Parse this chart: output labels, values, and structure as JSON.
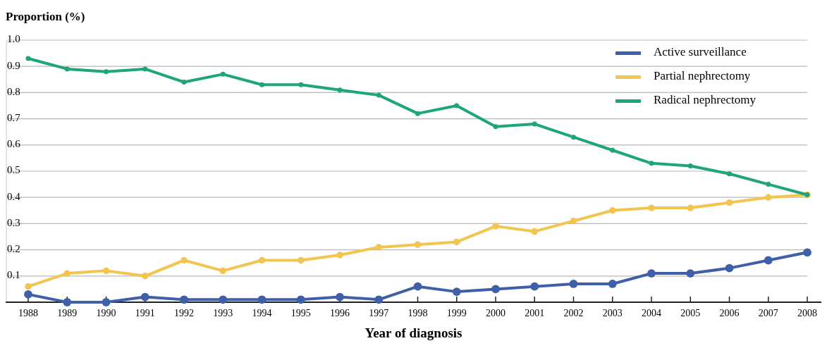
{
  "chart_data": {
    "type": "line",
    "ylabel": "Proportion (%)",
    "xlabel": "Year of diagnosis",
    "categories": [
      "1988",
      "1989",
      "1990",
      "1991",
      "1992",
      "1993",
      "1994",
      "1995",
      "1996",
      "1997",
      "1998",
      "1999",
      "2000",
      "2001",
      "2002",
      "2003",
      "2004",
      "2005",
      "2006",
      "2007",
      "2008"
    ],
    "series": [
      {
        "name": "Active surveillance",
        "color": "#3f5fa8",
        "values": [
          0.03,
          0.0,
          0.0,
          0.02,
          0.01,
          0.01,
          0.01,
          0.01,
          0.02,
          0.01,
          0.06,
          0.04,
          0.05,
          0.06,
          0.07,
          0.07,
          0.11,
          0.11,
          0.13,
          0.16,
          0.19
        ]
      },
      {
        "name": "Partial nephrectomy",
        "color": "#f2c450",
        "values": [
          0.06,
          0.11,
          0.12,
          0.1,
          0.16,
          0.12,
          0.16,
          0.16,
          0.18,
          0.21,
          0.22,
          0.23,
          0.29,
          0.27,
          0.31,
          0.35,
          0.36,
          0.36,
          0.38,
          0.4,
          0.41
        ]
      },
      {
        "name": "Radical nephrectomy",
        "color": "#1fa57a",
        "values": [
          0.93,
          0.89,
          0.88,
          0.89,
          0.84,
          0.87,
          0.83,
          0.83,
          0.81,
          0.79,
          0.72,
          0.75,
          0.67,
          0.68,
          0.63,
          0.58,
          0.53,
          0.52,
          0.49,
          0.45,
          0.41
        ]
      }
    ],
    "ylim": [
      0,
      1
    ],
    "yticks": [
      0.1,
      0.2,
      0.3,
      0.4,
      0.5,
      0.6,
      0.7,
      0.8,
      0.9,
      {
        "value": 1,
        "label": "1.0"
      }
    ],
    "grid": "y",
    "legend": "top right",
    "marker": "circle",
    "line_style": "solid"
  }
}
